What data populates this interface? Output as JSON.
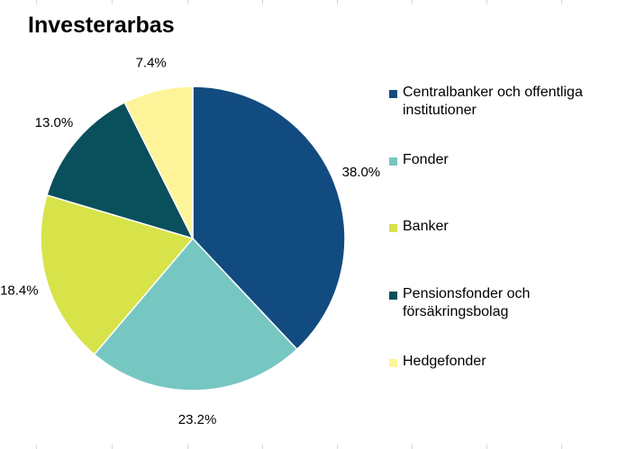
{
  "chart_data": {
    "type": "pie",
    "title": "Investerarbas",
    "categories": [
      "Centralbanker och offentliga institutioner",
      "Fonder",
      "Banker",
      "Pensionsfonder och försäkringsbolag",
      "Hedgefonder"
    ],
    "values": [
      38.0,
      23.2,
      18.4,
      13.0,
      7.4
    ],
    "labels": [
      "38.0%",
      "23.2%",
      "18.4%",
      "13.0%",
      "7.4%"
    ],
    "colors": [
      "#124B7F",
      "#76C6C2",
      "#D7E349",
      "#0A4F5C",
      "#FDF49A"
    ],
    "legend_position": "right"
  },
  "legend": [
    {
      "label": "Centralbanker och offentliga institutioner",
      "line1": "Centralbanker och offentliga",
      "line2": "institutioner",
      "color": "#124B7F"
    },
    {
      "label": "Fonder",
      "line1": "Fonder",
      "line2": "",
      "color": "#76C6C2"
    },
    {
      "label": "Banker",
      "line1": "Banker",
      "line2": "",
      "color": "#D7E349"
    },
    {
      "label": "Pensionsfonder och försäkringsbolag",
      "line1": "Pensionsfonder och",
      "line2": "försäkringsbolag",
      "color": "#0A4F5C"
    },
    {
      "label": "Hedgefonder",
      "line1": "Hedgefonder",
      "line2": "",
      "color": "#FDF49A"
    }
  ]
}
